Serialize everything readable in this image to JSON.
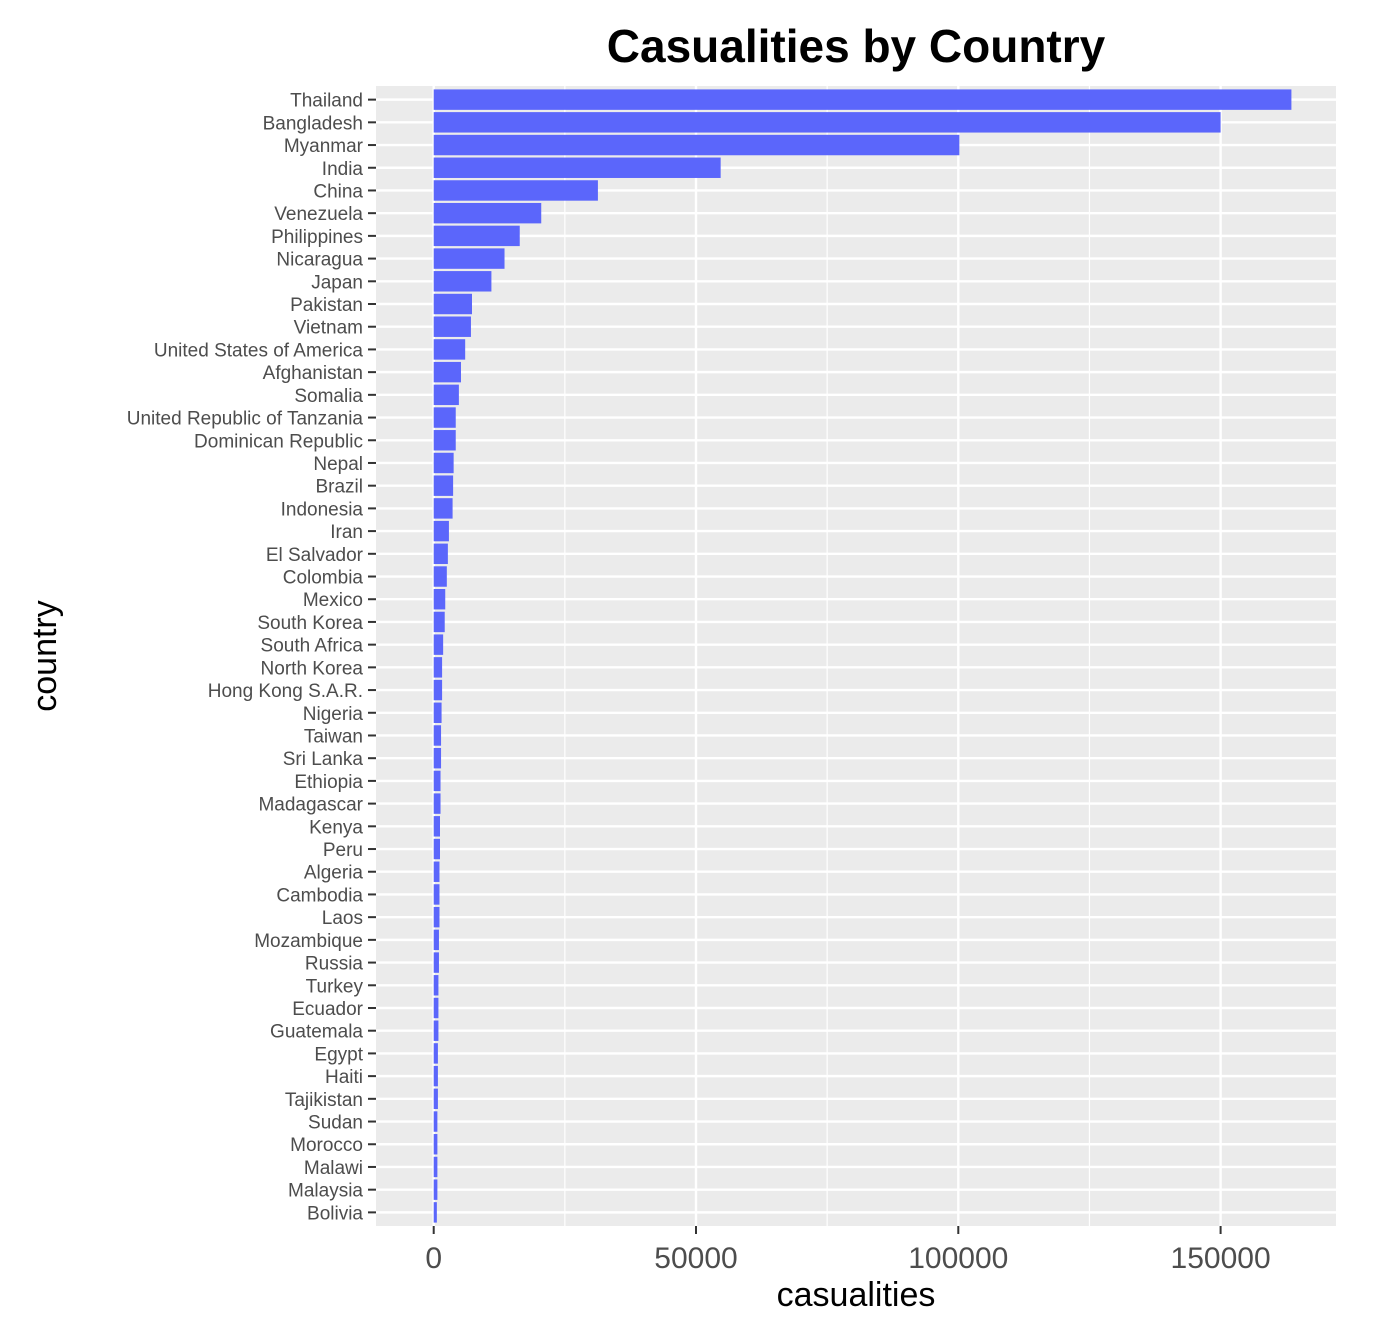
{
  "chart_data": {
    "type": "bar",
    "orientation": "horizontal",
    "title": "Casualities by Country",
    "xlabel": "casualities",
    "ylabel": "country",
    "xlim": [
      -11000,
      172000
    ],
    "xticks": [
      0,
      50000,
      100000,
      150000
    ],
    "xtick_labels": [
      "0",
      "50000",
      "100000",
      "150000"
    ],
    "grid": true,
    "bar_color": "#5b66fb",
    "panel_color": "#ebebeb",
    "categories": [
      "Thailand",
      "Bangladesh",
      "Myanmar",
      "India",
      "China",
      "Venezuela",
      "Philippines",
      "Nicaragua",
      "Japan",
      "Pakistan",
      "Vietnam",
      "United States of America",
      "Afghanistan",
      "Somalia",
      "United Republic of Tanzania",
      "Dominican Republic",
      "Nepal",
      "Brazil",
      "Indonesia",
      "Iran",
      "El Salvador",
      "Colombia",
      "Mexico",
      "South Korea",
      "South Africa",
      "North Korea",
      "Hong Kong S.A.R.",
      "Nigeria",
      "Taiwan",
      "Sri Lanka",
      "Ethiopia",
      "Madagascar",
      "Kenya",
      "Peru",
      "Algeria",
      "Cambodia",
      "Laos",
      "Mozambique",
      "Russia",
      "Turkey",
      "Ecuador",
      "Guatemala",
      "Egypt",
      "Haiti",
      "Tajikistan",
      "Sudan",
      "Morocco",
      "Malawi",
      "Malaysia",
      "Bolivia"
    ],
    "values": [
      163500,
      150000,
      100200,
      54700,
      31300,
      20500,
      16400,
      13500,
      11000,
      7300,
      7100,
      6000,
      5200,
      4800,
      4200,
      4200,
      3800,
      3700,
      3600,
      2900,
      2700,
      2500,
      2200,
      2100,
      1800,
      1600,
      1600,
      1500,
      1400,
      1400,
      1300,
      1300,
      1200,
      1200,
      1100,
      1100,
      1100,
      1000,
      1000,
      900,
      900,
      900,
      800,
      800,
      800,
      700,
      700,
      700,
      700,
      600
    ]
  }
}
